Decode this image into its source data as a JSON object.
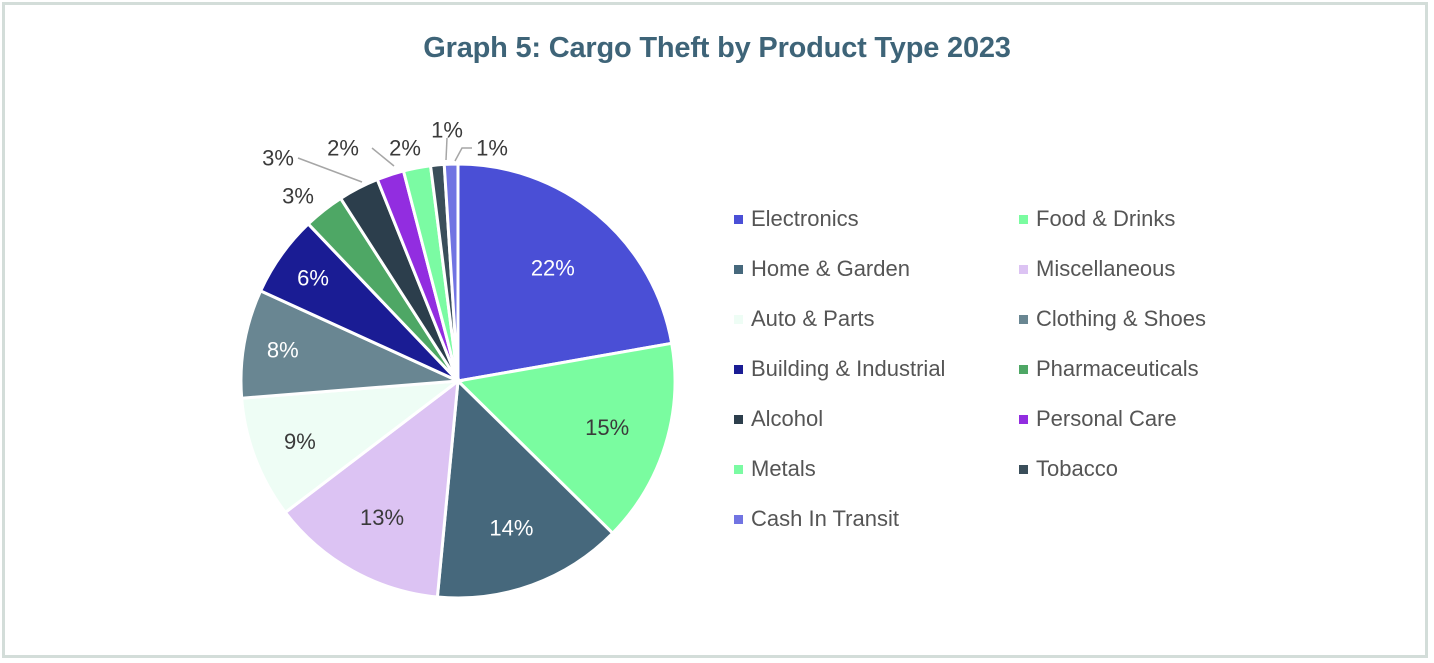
{
  "chart_data": {
    "type": "pie",
    "title": "Graph 5: Cargo Theft by Product Type 2023",
    "start_angle": "12 o'clock, clockwise",
    "slices": [
      {
        "label": "Electronics",
        "value": 22,
        "display": "22%",
        "color": "#4a4fd6",
        "label_color": "#ffffff"
      },
      {
        "label": "Food & Drinks",
        "value": 15,
        "display": "15%",
        "color": "#7afca0",
        "label_color": "#3a3a3a"
      },
      {
        "label": "Home & Garden",
        "value": 14,
        "display": "14%",
        "color": "#46687c",
        "label_color": "#ffffff"
      },
      {
        "label": "Miscellaneous",
        "value": 13,
        "display": "13%",
        "color": "#dcc3f3",
        "label_color": "#3a3a3a"
      },
      {
        "label": "Auto & Parts",
        "value": 9,
        "display": "9%",
        "color": "#eefdf5",
        "label_color": "#3a3a3a"
      },
      {
        "label": "Clothing & Shoes",
        "value": 8,
        "display": "8%",
        "color": "#698692",
        "label_color": "#ffffff"
      },
      {
        "label": "Building & Industrial",
        "value": 6,
        "display": "6%",
        "color": "#1a1c94",
        "label_color": "#ffffff"
      },
      {
        "label": "Pharmaceuticals",
        "value": 3,
        "display": "3%",
        "color": "#4ea765",
        "label_color": "#3a3a3a"
      },
      {
        "label": "Alcohol",
        "value": 3,
        "display": "3%",
        "color": "#2c3e4c",
        "label_color": "#3a3a3a"
      },
      {
        "label": "Personal Care",
        "value": 2,
        "display": "2%",
        "color": "#922de0",
        "label_color": "#3a3a3a"
      },
      {
        "label": "Metals",
        "value": 2,
        "display": "2%",
        "color": "#7bfba3",
        "label_color": "#3a3a3a"
      },
      {
        "label": "Tobacco",
        "value": 1,
        "display": "1%",
        "color": "#3a4e5a",
        "label_color": "#3a3a3a"
      },
      {
        "label": "Cash In Transit",
        "value": 1,
        "display": "1%",
        "color": "#7174e2",
        "label_color": "#3a3a3a"
      }
    ],
    "legend": {
      "placement": "right",
      "columns": 2,
      "order": [
        "Electronics",
        "Food & Drinks",
        "Home & Garden",
        "Miscellaneous",
        "Auto & Parts",
        "Clothing & Shoes",
        "Building & Industrial",
        "Pharmaceuticals",
        "Alcohol",
        "Personal Care",
        "Metals",
        "Tobacco",
        "Cash In Transit"
      ]
    }
  }
}
